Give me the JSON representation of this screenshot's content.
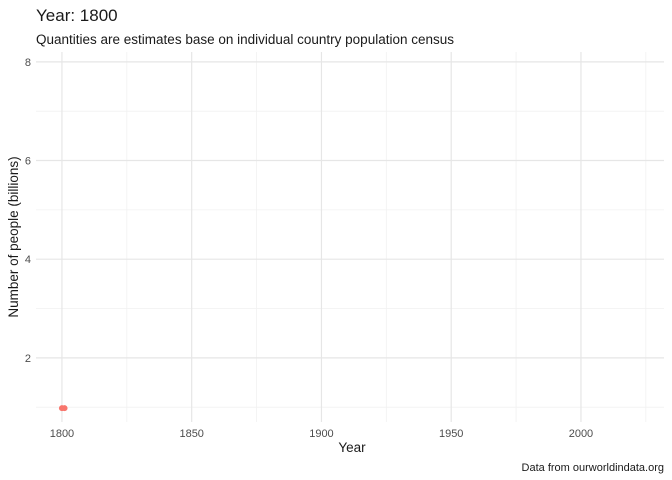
{
  "chart_data": {
    "type": "scatter",
    "title": "Year: 1800",
    "subtitle": "Quantities are estimates base on individual country population census",
    "xlabel": "Year",
    "ylabel": "Number of people (billions)",
    "caption": "Data from ourworldindata.org",
    "xlim": [
      1790,
      2032
    ],
    "ylim": [
      0.7,
      8.2
    ],
    "x_ticks": [
      1800,
      1850,
      1900,
      1950,
      2000
    ],
    "x_tick_labels": [
      "1800",
      "1850",
      "1900",
      "1950",
      "2000"
    ],
    "x_minor_ticks": [
      1825,
      1875,
      1925,
      1975,
      2025
    ],
    "y_ticks": [
      2,
      4,
      6,
      8
    ],
    "y_tick_labels": [
      "2",
      "4",
      "6",
      "8"
    ],
    "y_minor_ticks": [
      1,
      3,
      5,
      7
    ],
    "grid": true,
    "legend": "none",
    "point_color": "#F8766D",
    "points": [
      {
        "x": 1800,
        "y": 0.98
      },
      {
        "x": 1801,
        "y": 0.98
      }
    ]
  }
}
